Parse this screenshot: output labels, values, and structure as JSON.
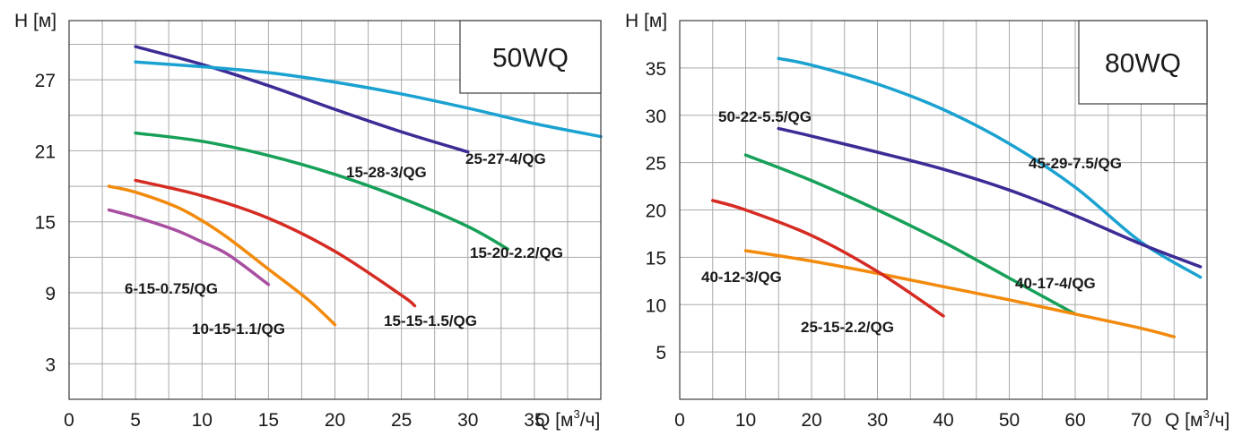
{
  "chart_data": [
    {
      "type": "line",
      "title": "50WQ",
      "xlabel": "Q [м³/ч]",
      "xlabel_main": "Q [м",
      "xlabel_sup": "3",
      "xlabel_end": "/ч]",
      "ylabel": "H [м]",
      "xlim": [
        0,
        40
      ],
      "ylim": [
        0,
        32
      ],
      "x_ticks": [
        0,
        5,
        10,
        15,
        20,
        25,
        30,
        35
      ],
      "y_ticks": [
        3,
        9,
        15,
        21,
        27
      ],
      "grid": true,
      "series": [
        {
          "name": "15-28-3/QG",
          "color": "#3d2b96",
          "label": "15-28-3/QG",
          "x": [
            5,
            10,
            15,
            20,
            25,
            30
          ],
          "y": [
            29.8,
            28.3,
            26.5,
            24.5,
            22.6,
            20.9
          ]
        },
        {
          "name": "25-27-4/QG",
          "color": "#1ba2d1",
          "label": "25-27-4/QG",
          "x": [
            5,
            10,
            15,
            20,
            25,
            30,
            35,
            40
          ],
          "y": [
            28.5,
            28.1,
            27.6,
            26.8,
            25.8,
            24.6,
            23.3,
            22.2
          ]
        },
        {
          "name": "15-20-2.2/QG",
          "color": "#16a058",
          "label": "15-20-2.2/QG",
          "x": [
            5,
            10,
            15,
            20,
            25,
            30,
            33
          ],
          "y": [
            22.5,
            21.8,
            20.6,
            19.0,
            17.0,
            14.6,
            12.7
          ]
        },
        {
          "name": "15-15-1.5/QG",
          "color": "#d52b22",
          "label": "15-15-1.5/QG",
          "x": [
            5,
            10,
            15,
            20,
            25,
            26
          ],
          "y": [
            18.5,
            17.2,
            15.3,
            12.5,
            8.8,
            7.9
          ]
        },
        {
          "name": "10-15-1.1/QG",
          "color": "#f28a0c",
          "label": "10-15-1.1/QG",
          "x": [
            3,
            5,
            8,
            10,
            12,
            15,
            18,
            20
          ],
          "y": [
            18.0,
            17.5,
            16.3,
            15.1,
            13.6,
            11.0,
            8.4,
            6.3
          ]
        },
        {
          "name": "6-15-0.75/QG",
          "color": "#a84fa1",
          "label": "6-15-0.75/QG",
          "x": [
            3,
            5,
            8,
            10,
            12,
            15
          ],
          "y": [
            16.0,
            15.4,
            14.3,
            13.3,
            12.2,
            9.7
          ]
        }
      ]
    },
    {
      "type": "line",
      "title": "80WQ",
      "xlabel": "Q [м³/ч]",
      "xlabel_main": "Q [м",
      "xlabel_sup": "3",
      "xlabel_end": "/ч]",
      "ylabel": "H [м]",
      "xlim": [
        0,
        80
      ],
      "ylim": [
        0,
        40
      ],
      "x_ticks": [
        0,
        10,
        20,
        30,
        40,
        50,
        60,
        70
      ],
      "y_ticks": [
        5,
        10,
        15,
        20,
        25,
        30,
        35
      ],
      "grid": true,
      "series": [
        {
          "name": "45-29-7.5/QG",
          "color": "#1ba2d1",
          "label": "45-29-7.5/QG",
          "x": [
            15,
            20,
            30,
            40,
            50,
            60,
            70,
            79
          ],
          "y": [
            36.0,
            35.3,
            33.3,
            30.6,
            27.0,
            22.4,
            16.6,
            12.9
          ]
        },
        {
          "name": "50-22-5.5/QG",
          "color": "#3d2b96",
          "label": "50-22-5.5/QG",
          "x": [
            15,
            20,
            30,
            40,
            50,
            60,
            70,
            79
          ],
          "y": [
            28.6,
            27.8,
            26.1,
            24.3,
            22.1,
            19.4,
            16.4,
            14.0
          ]
        },
        {
          "name": "40-17-4/QG",
          "color": "#16a058",
          "label": "40-17-4/QG",
          "x": [
            10,
            20,
            30,
            40,
            50,
            60
          ],
          "y": [
            25.8,
            23.1,
            20.0,
            16.6,
            12.8,
            9.0
          ]
        },
        {
          "name": "40-12-3/QG",
          "color": "#f28a0c",
          "label": "40-12-3/QG",
          "x": [
            10,
            20,
            30,
            40,
            50,
            60,
            70,
            75
          ],
          "y": [
            15.7,
            14.6,
            13.3,
            11.9,
            10.5,
            9.0,
            7.5,
            6.6
          ]
        },
        {
          "name": "25-15-2.2/QG",
          "color": "#d52b22",
          "label": "25-15-2.2/QG",
          "x": [
            5,
            10,
            20,
            30,
            40
          ],
          "y": [
            21.0,
            20.0,
            17.3,
            13.5,
            8.8
          ]
        }
      ]
    }
  ]
}
